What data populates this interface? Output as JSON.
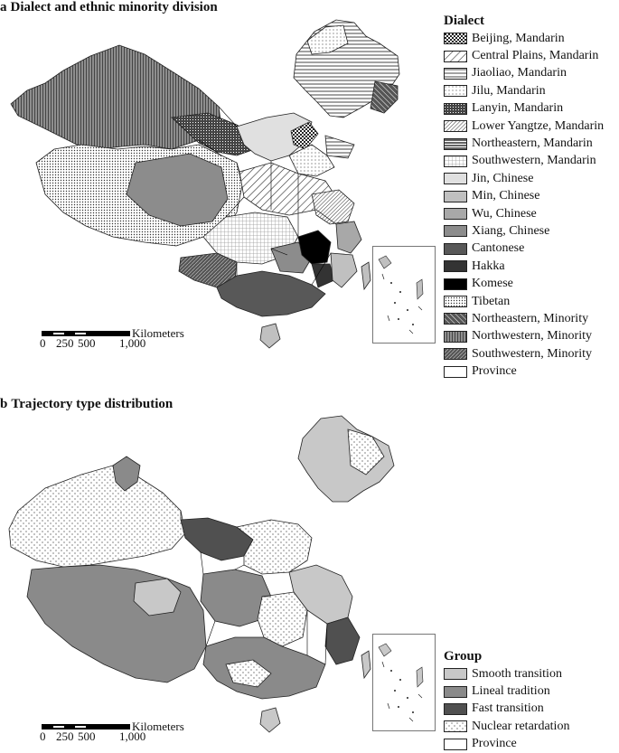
{
  "panel_a": {
    "letter": "a",
    "title": "Dialect and ethnic minority division",
    "legend": {
      "title": "Dialect",
      "items": [
        {
          "label": "Beijing, Mandarin",
          "pattern": "pat-check-dense"
        },
        {
          "label": "Central Plains, Mandarin",
          "pattern": "pat-diag-wide"
        },
        {
          "label": "Jiaoliao, Mandarin",
          "pattern": "pat-horiz"
        },
        {
          "label": "Jilu, Mandarin",
          "pattern": "pat-dots-light"
        },
        {
          "label": "Lanyin, Mandarin",
          "pattern": "pat-cross-dense"
        },
        {
          "label": "Lower Yangtze, Mandarin",
          "pattern": "pat-diag-fine"
        },
        {
          "label": "Northeastern, Mandarin",
          "pattern": "pat-horiz-dense"
        },
        {
          "label": "Southwestern, Mandarin",
          "pattern": "pat-grid-light"
        },
        {
          "label": "Jin, Chinese",
          "color": "#e0e0e0"
        },
        {
          "label": "Min, Chinese",
          "color": "#c0c0c0"
        },
        {
          "label": "Wu, Chinese",
          "color": "#a8a8a8"
        },
        {
          "label": "Xiang, Chinese",
          "color": "#8c8c8c"
        },
        {
          "label": "Cantonese",
          "color": "#585858"
        },
        {
          "label": "Hakka",
          "color": "#333333"
        },
        {
          "label": "Komese",
          "color": "#000000"
        },
        {
          "label": "Tibetan",
          "pattern": "pat-dots-grid"
        },
        {
          "label": "Northeastern, Minority",
          "pattern": "pat-diag-dark"
        },
        {
          "label": "Northwestern, Minority",
          "pattern": "pat-vert-dark"
        },
        {
          "label": "Southwestern, Minority",
          "pattern": "pat-hatch-dark"
        },
        {
          "label": "Province",
          "color": "#ffffff"
        }
      ]
    },
    "scalebar": {
      "unit": "Kilometers",
      "ticks": [
        "0",
        "250",
        "500",
        "1,000"
      ]
    }
  },
  "panel_b": {
    "letter": "b",
    "title": "Trajectory type distribution",
    "legend": {
      "title": "Group",
      "items": [
        {
          "label": "Smooth transition",
          "color": "#c8c8c8"
        },
        {
          "label": "Lineal tradition",
          "color": "#8a8a8a"
        },
        {
          "label": "Fast transition",
          "color": "#505050"
        },
        {
          "label": "Nuclear retardation",
          "pattern": "pat-dots-sparse"
        },
        {
          "label": "Province",
          "color": "#ffffff"
        }
      ]
    },
    "scalebar": {
      "unit": "Kilometers",
      "ticks": [
        "0",
        "250",
        "500",
        "1,000"
      ]
    }
  }
}
